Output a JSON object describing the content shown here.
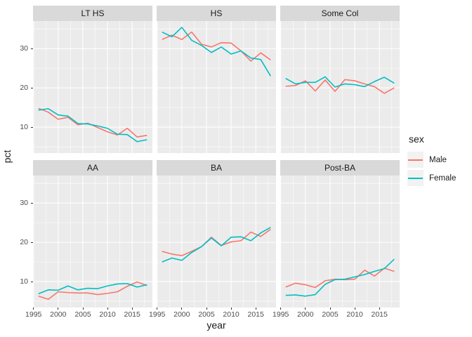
{
  "chart_data": {
    "type": "line",
    "title": "",
    "xlabel": "year",
    "ylabel": "pct",
    "facet_layout": {
      "rows": 2,
      "cols": 3
    },
    "x": [
      1996,
      1998,
      2000,
      2002,
      2004,
      2006,
      2008,
      2010,
      2012,
      2014,
      2016,
      2018
    ],
    "x_domain": [
      1994.9,
      2019.1
    ],
    "y_domain": [
      3.4,
      37.0
    ],
    "x_ticks": {
      "major": [
        1995,
        2000,
        2005,
        2010,
        2015
      ],
      "labels": [
        "1995",
        "2000",
        "2005",
        "2010",
        "2015"
      ],
      "minor": [
        1997.5,
        2002.5,
        2007.5,
        2012.5,
        2017.5
      ]
    },
    "y_ticks": {
      "major": [
        10,
        20,
        30
      ],
      "labels": [
        "10",
        "20",
        "30"
      ],
      "minor": [
        5,
        15,
        25,
        35
      ]
    },
    "legend": {
      "title": "sex",
      "entries": [
        "Male",
        "Female"
      ],
      "position": "right"
    },
    "colors": {
      "Male": "#F8766D",
      "Female": "#00BFC4"
    },
    "grid": "on",
    "facets": [
      {
        "label": "LT HS",
        "series": [
          {
            "name": "Male",
            "values": [
              14.8,
              13.8,
              12.0,
              12.5,
              10.6,
              11.0,
              9.9,
              8.8,
              8.0,
              9.7,
              7.5,
              7.9
            ]
          },
          {
            "name": "Female",
            "values": [
              14.3,
              14.7,
              13.1,
              12.8,
              10.9,
              10.8,
              10.3,
              9.7,
              8.2,
              8.1,
              6.3,
              6.8
            ]
          }
        ]
      },
      {
        "label": "HS",
        "series": [
          {
            "name": "Male",
            "values": [
              32.3,
              33.4,
              32.3,
              34.2,
              31.1,
              30.4,
              31.5,
              31.4,
              29.4,
              26.8,
              28.9,
              27.1
            ]
          },
          {
            "name": "Female",
            "values": [
              34.2,
              33.0,
              35.4,
              32.1,
              30.8,
              29.0,
              30.4,
              28.6,
              29.4,
              27.6,
              27.2,
              23.0
            ]
          }
        ]
      },
      {
        "label": "Some Col",
        "series": [
          {
            "name": "Male",
            "values": [
              20.4,
              20.6,
              21.8,
              19.2,
              22.0,
              19.1,
              22.1,
              21.8,
              21.0,
              20.3,
              18.6,
              20.0
            ]
          },
          {
            "name": "Female",
            "values": [
              22.4,
              21.0,
              21.4,
              21.4,
              22.8,
              20.2,
              21.0,
              20.8,
              20.3,
              21.6,
              22.7,
              21.2
            ]
          }
        ]
      },
      {
        "label": "AA",
        "series": [
          {
            "name": "Male",
            "values": [
              6.3,
              5.5,
              7.4,
              7.2,
              7.1,
              7.1,
              6.7,
              7.0,
              7.4,
              8.8,
              9.9,
              9.0
            ]
          },
          {
            "name": "Female",
            "values": [
              6.9,
              7.9,
              7.8,
              8.9,
              7.9,
              8.3,
              8.2,
              8.9,
              9.4,
              9.5,
              8.6,
              9.2
            ]
          }
        ]
      },
      {
        "label": "BA",
        "series": [
          {
            "name": "Male",
            "values": [
              17.7,
              17.0,
              16.6,
              17.7,
              18.9,
              21.3,
              19.2,
              20.1,
              20.4,
              22.6,
              21.5,
              23.3
            ]
          },
          {
            "name": "Female",
            "values": [
              15.0,
              16.0,
              15.4,
              17.4,
              18.9,
              21.1,
              19.1,
              21.3,
              21.4,
              20.4,
              22.4,
              23.8
            ]
          }
        ]
      },
      {
        "label": "Post-BA",
        "series": [
          {
            "name": "Male",
            "values": [
              8.6,
              9.6,
              9.2,
              8.5,
              10.2,
              10.6,
              10.5,
              10.6,
              12.9,
              11.4,
              13.4,
              12.6
            ]
          },
          {
            "name": "Female",
            "values": [
              6.5,
              6.6,
              6.3,
              6.7,
              9.3,
              10.5,
              10.6,
              11.2,
              11.8,
              12.6,
              13.3,
              15.7
            ]
          }
        ]
      }
    ]
  },
  "theme": {
    "panel_background": "#EBEBEB",
    "strip_background": "#D9D9D9",
    "gridline_color": "#FFFFFF",
    "tick_text_color": "#4D4D4D",
    "tick_mark_color": "#333333",
    "legend_key_background": "#F2F2F2",
    "figure_background": "#FFFFFF"
  }
}
